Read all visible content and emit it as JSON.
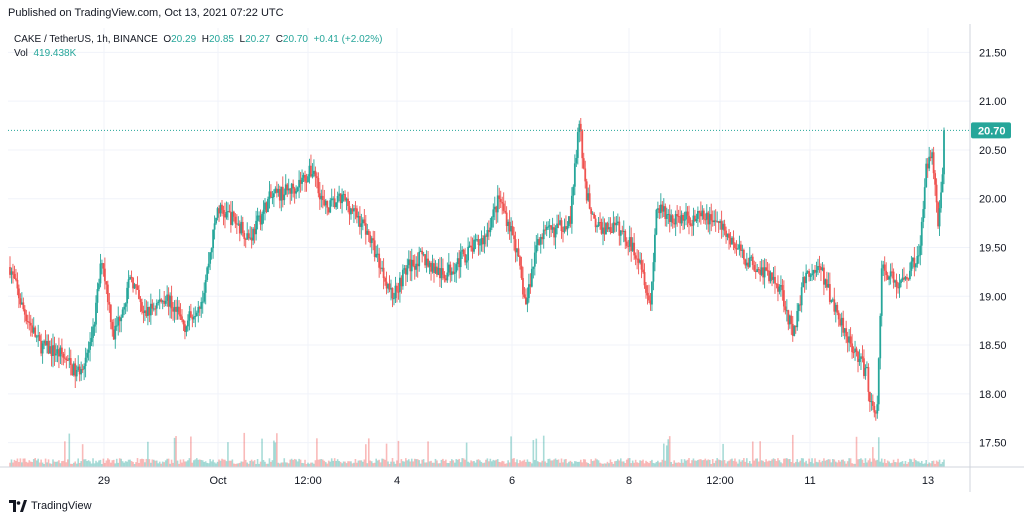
{
  "published": "Published on TradingView.com, Oct 13, 2021 07:22 UTC",
  "legend": {
    "symbol": "CAKE / TetherUS, 1h, BINANCE",
    "o_label": "O",
    "o_value": "20.29",
    "h_label": "H",
    "h_value": "20.85",
    "l_label": "L",
    "l_value": "20.27",
    "c_label": "C",
    "c_value": "20.70",
    "change": "+0.41 (+2.02%)",
    "vol_label": "Vol",
    "vol_value": "419.438K"
  },
  "footer": {
    "brand": "TradingView"
  },
  "colors": {
    "up": "#26a69a",
    "down": "#ef5350",
    "last_price": "#26a69a",
    "grid": "#f0f3fa",
    "axis_text": "#131722"
  },
  "chart_data": {
    "type": "candlestick",
    "symbol": "CAKE / TetherUS",
    "interval": "1h",
    "exchange": "BINANCE",
    "y_axis": {
      "ticks": [
        17.5,
        18.0,
        18.5,
        19.0,
        19.5,
        20.0,
        20.5,
        21.0,
        21.5
      ],
      "tick_labels": [
        "17.50",
        "18.00",
        "18.50",
        "19.00",
        "19.50",
        "20.00",
        "20.50",
        "21.00",
        "21.50"
      ],
      "ylim": [
        17.25,
        21.75
      ]
    },
    "x_axis": {
      "tick_labels": [
        "29",
        "Oct",
        "12:00",
        "4",
        "6",
        "8",
        "12:00",
        "11",
        "13"
      ]
    },
    "last_price": 20.7,
    "last_price_label": "20.70",
    "grid": true,
    "trend_keypoints": [
      [
        0,
        19.3
      ],
      [
        8,
        18.9
      ],
      [
        20,
        18.5
      ],
      [
        35,
        18.4
      ],
      [
        45,
        18.2
      ],
      [
        55,
        18.5
      ],
      [
        62,
        19.4
      ],
      [
        70,
        18.6
      ],
      [
        82,
        19.2
      ],
      [
        90,
        18.8
      ],
      [
        105,
        19.0
      ],
      [
        118,
        18.7
      ],
      [
        130,
        19.0
      ],
      [
        140,
        19.9
      ],
      [
        150,
        19.8
      ],
      [
        162,
        19.6
      ],
      [
        175,
        20.0
      ],
      [
        190,
        20.1
      ],
      [
        205,
        20.3
      ],
      [
        212,
        19.9
      ],
      [
        225,
        20.0
      ],
      [
        240,
        19.7
      ],
      [
        258,
        19.0
      ],
      [
        268,
        19.3
      ],
      [
        278,
        19.4
      ],
      [
        292,
        19.2
      ],
      [
        305,
        19.4
      ],
      [
        320,
        19.6
      ],
      [
        330,
        20.0
      ],
      [
        340,
        19.6
      ],
      [
        348,
        18.9
      ],
      [
        356,
        19.6
      ],
      [
        370,
        19.7
      ],
      [
        378,
        19.8
      ],
      [
        384,
        20.8
      ],
      [
        388,
        20.1
      ],
      [
        396,
        19.7
      ],
      [
        410,
        19.7
      ],
      [
        425,
        19.4
      ],
      [
        432,
        18.9
      ],
      [
        436,
        19.9
      ],
      [
        445,
        19.8
      ],
      [
        460,
        19.8
      ],
      [
        475,
        19.8
      ],
      [
        485,
        19.6
      ],
      [
        495,
        19.4
      ],
      [
        505,
        19.3
      ],
      [
        520,
        19.1
      ],
      [
        528,
        18.6
      ],
      [
        536,
        19.2
      ],
      [
        546,
        19.3
      ],
      [
        556,
        18.9
      ],
      [
        568,
        18.5
      ],
      [
        578,
        18.2
      ],
      [
        580,
        17.9
      ],
      [
        585,
        17.85
      ],
      [
        588,
        19.3
      ],
      [
        600,
        19.1
      ],
      [
        608,
        19.3
      ],
      [
        614,
        19.5
      ],
      [
        618,
        20.3
      ],
      [
        622,
        20.55
      ],
      [
        626,
        19.7
      ],
      [
        630,
        20.5
      ]
    ],
    "volume_label": "Vol",
    "volume_value": "419.438K"
  }
}
